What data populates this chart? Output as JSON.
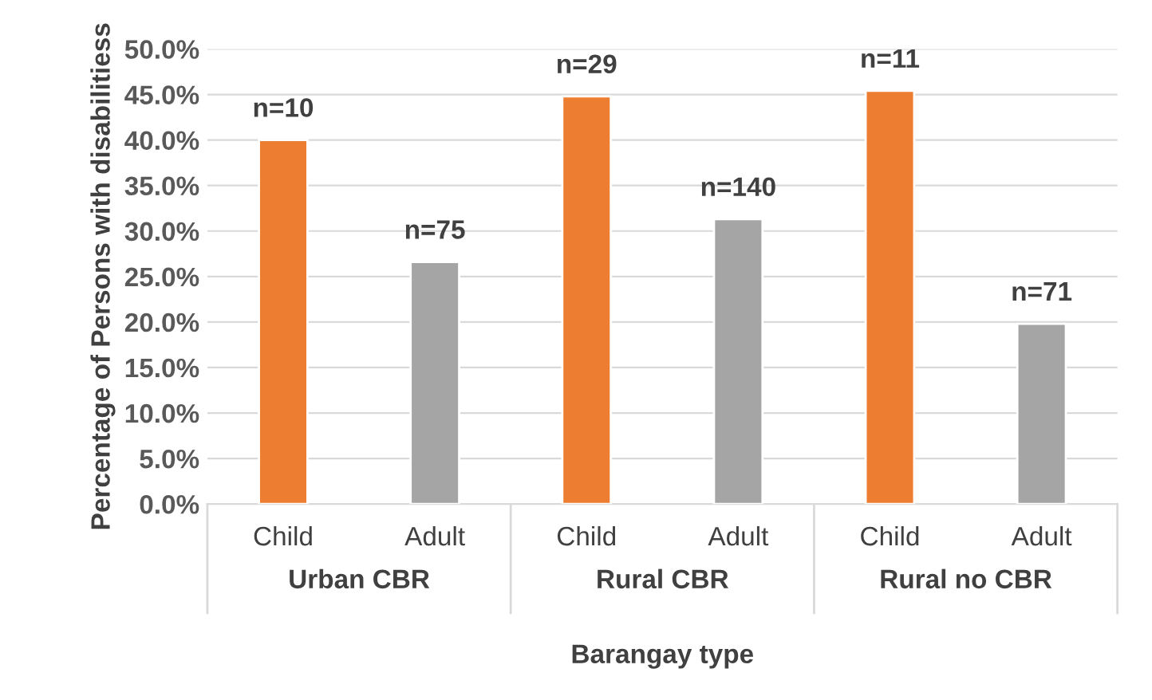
{
  "chart_data": {
    "type": "bar",
    "xlabel": "Barangay type",
    "ylabel": "Percentage of Persons with disabilitiess",
    "categories": [
      "Child",
      "Adult",
      "Child",
      "Adult",
      "Child",
      "Adult"
    ],
    "values": [
      40.0,
      26.6,
      44.8,
      31.3,
      45.4,
      19.8
    ],
    "colors": [
      "#ed7d31",
      "#a5a5a5",
      "#ed7d31",
      "#a5a5a5",
      "#ed7d31",
      "#a5a5a5"
    ],
    "annotations": [
      {
        "text": "n=10",
        "y": 40.0
      },
      {
        "text": "n=75",
        "y": 26.6
      },
      {
        "text": "n=29",
        "y": 44.8
      },
      {
        "text": "n=140",
        "y": 31.3
      },
      {
        "text": "n=11",
        "y": 45.4
      },
      {
        "text": "n=71",
        "y": 19.8
      },
      "Urban CBR",
      "Rural CBR",
      "Rural no CBR"
    ],
    "ylim": [
      0,
      50
    ],
    "yticks": [
      {
        "value": 0,
        "label": "0.0%"
      },
      {
        "value": 5,
        "label": "5.0%"
      },
      {
        "value": 10,
        "label": "10.0%"
      },
      {
        "value": 15,
        "label": "15.0%"
      },
      {
        "value": 20,
        "label": "20.0%"
      },
      {
        "value": 25,
        "label": "25.0%"
      },
      {
        "value": 30,
        "label": "30.0%"
      },
      {
        "value": 35,
        "label": "35.0%"
      },
      {
        "value": 40,
        "label": "40.0%"
      },
      {
        "value": 45,
        "label": "45.0%"
      },
      {
        "value": 50,
        "label": "50.0%"
      }
    ],
    "grid": "y",
    "legend": false
  }
}
